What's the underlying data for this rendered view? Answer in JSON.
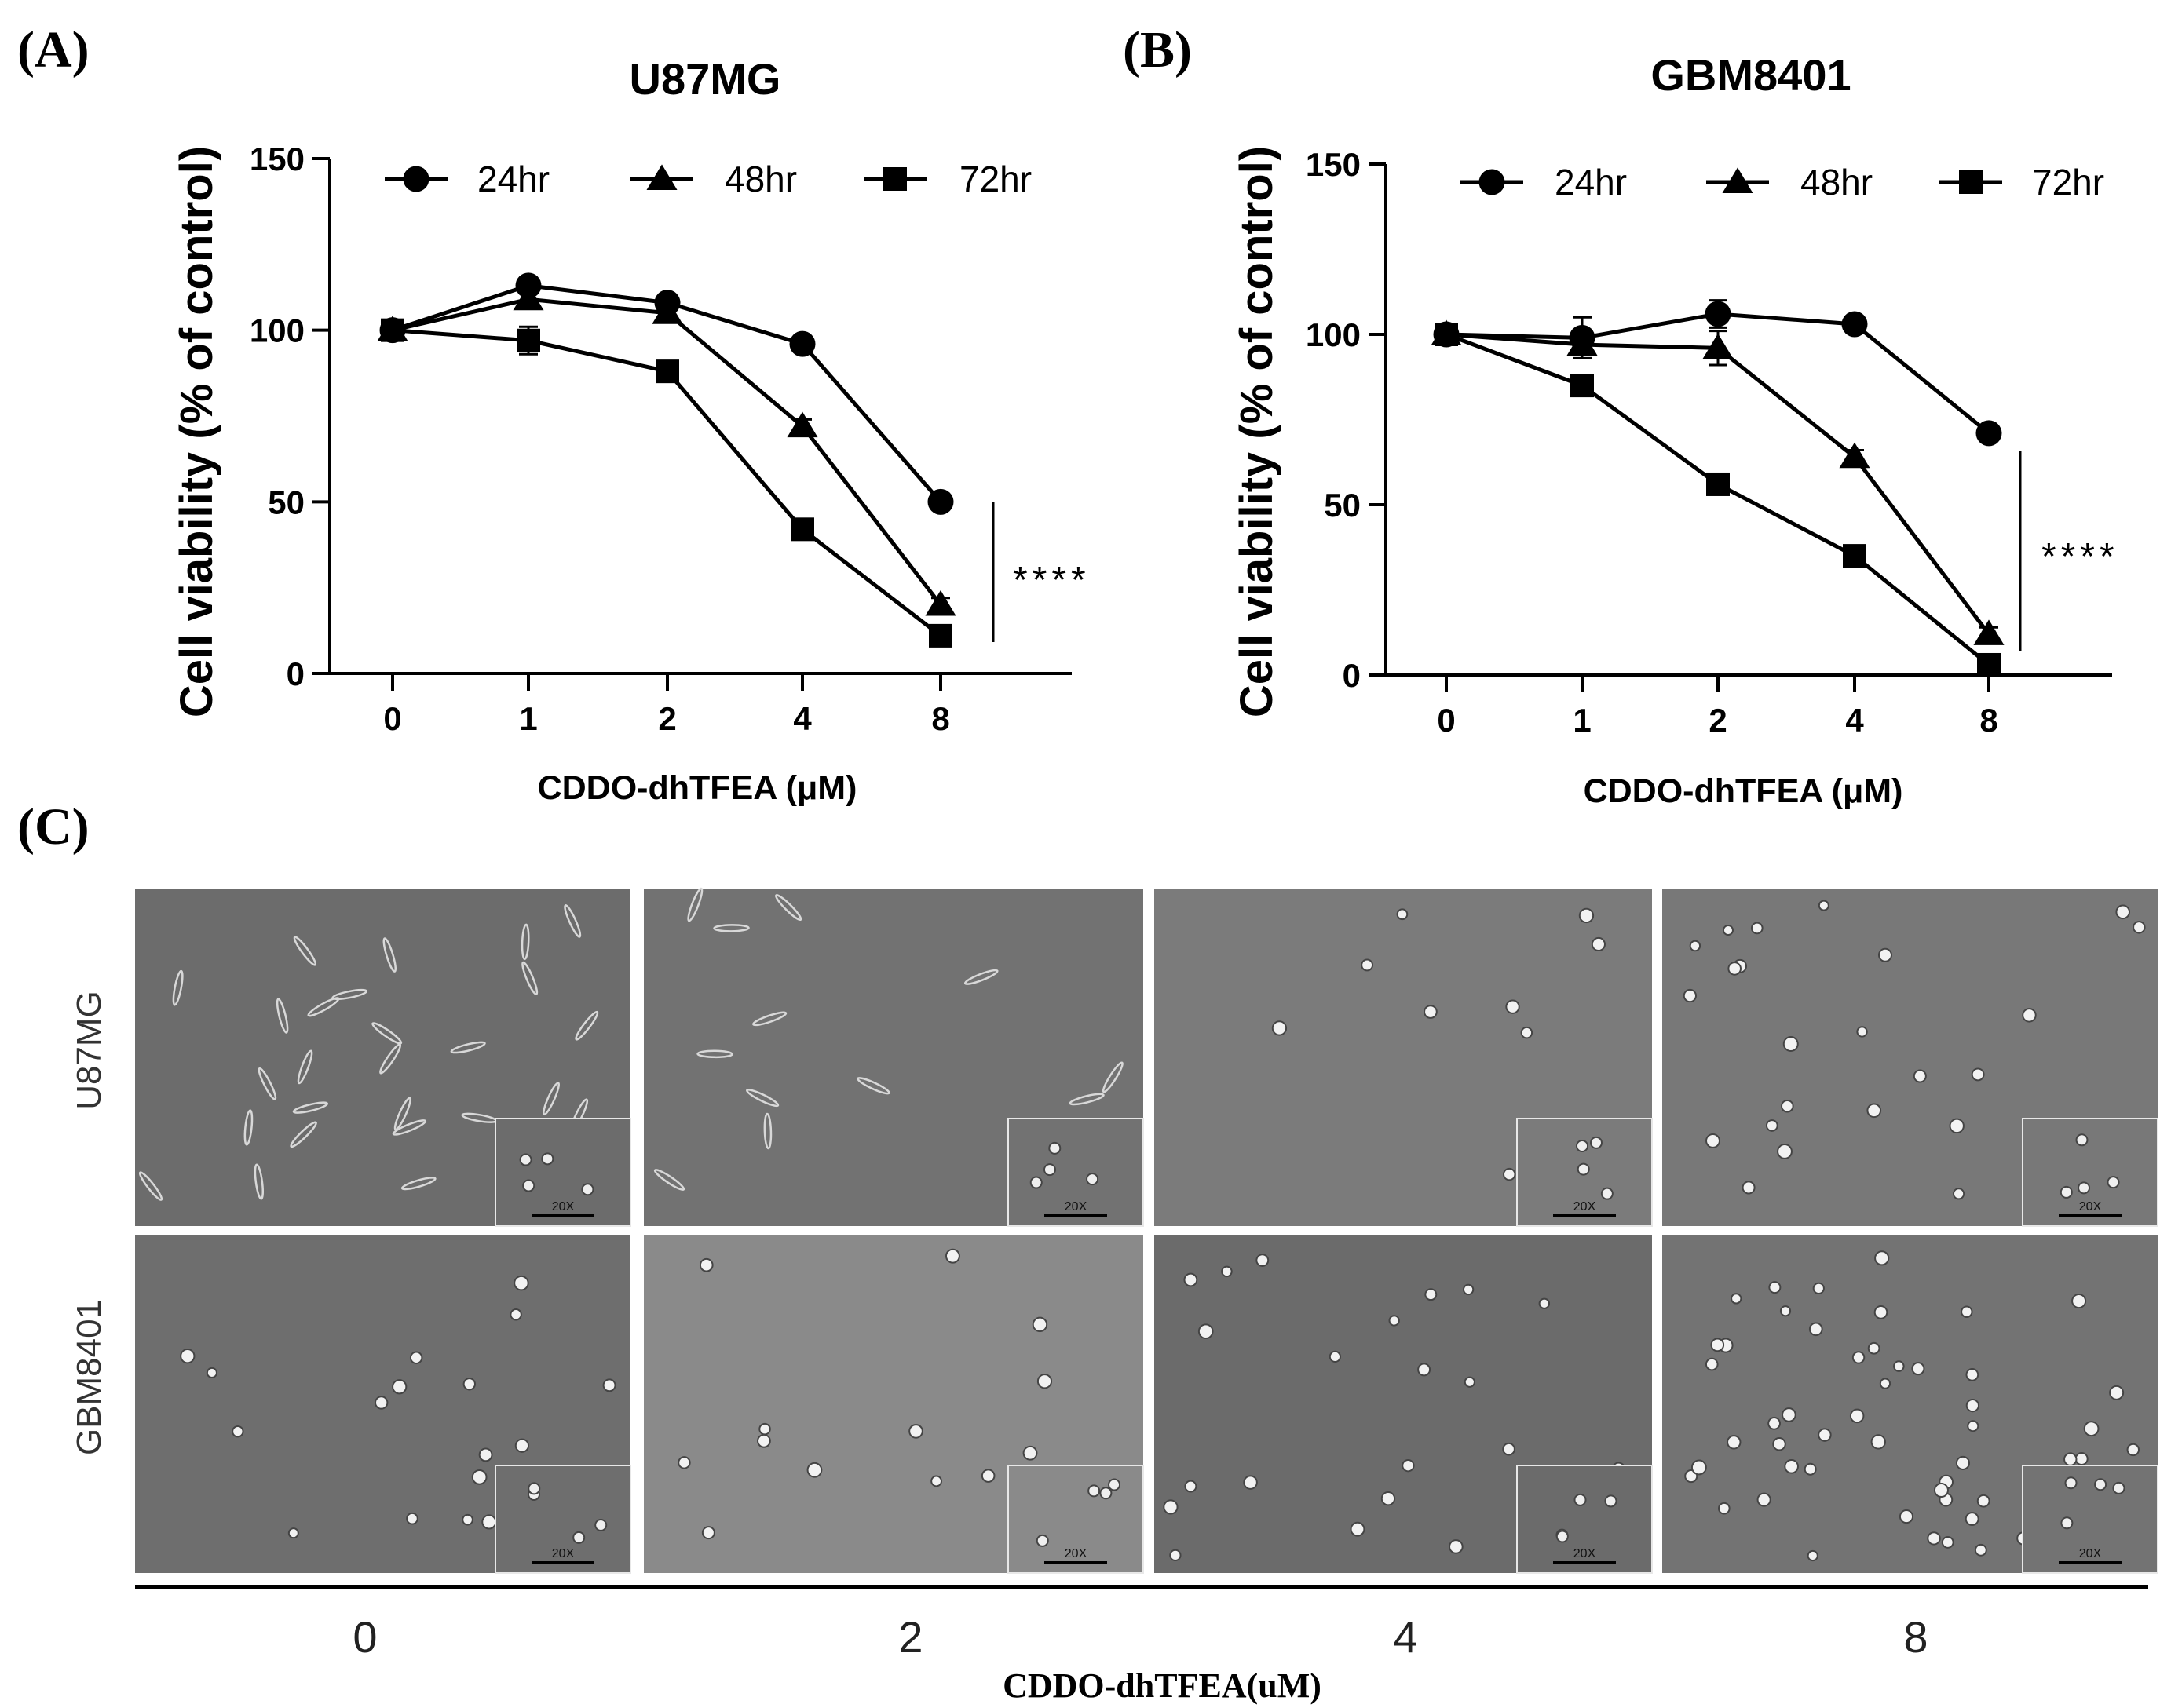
{
  "panel_labels": {
    "a": "(A)",
    "b": "(B)",
    "c": "(C)"
  },
  "chart_data": [
    {
      "type": "line",
      "title": "U87MG",
      "xlabel": "CDDO-dhTFEA (μM)",
      "ylabel": "Cell viability (% of control)",
      "categories": [
        "0",
        "1",
        "2",
        "4",
        "8"
      ],
      "ylim": [
        0,
        150
      ],
      "yticks": [
        "0",
        "50",
        "100",
        "150"
      ],
      "legend_position": "top",
      "series": [
        {
          "name": "24hr",
          "marker": "circle",
          "values": [
            100,
            113,
            108,
            96,
            50
          ],
          "errors": [
            1,
            2,
            1.5,
            1.5,
            1.5
          ]
        },
        {
          "name": "48hr",
          "marker": "triangle",
          "values": [
            100,
            109,
            105,
            72,
            20
          ],
          "errors": [
            1,
            2,
            1.5,
            2,
            2
          ]
        },
        {
          "name": "72hr",
          "marker": "square",
          "values": [
            100,
            97,
            88,
            42,
            11
          ],
          "errors": [
            1,
            4,
            1.5,
            1.5,
            1
          ]
        }
      ],
      "significance": "****"
    },
    {
      "type": "line",
      "title": "GBM8401",
      "xlabel": "CDDO-dhTFEA (μM)",
      "ylabel": "Cell viability (% of control)",
      "categories": [
        "0",
        "1",
        "2",
        "4",
        "8"
      ],
      "ylim": [
        0,
        150
      ],
      "yticks": [
        "0",
        "50",
        "100",
        "150"
      ],
      "legend_position": "top",
      "series": [
        {
          "name": "24hr",
          "marker": "circle",
          "values": [
            100,
            99,
            106,
            103,
            71
          ],
          "errors": [
            1,
            6,
            4,
            1.5,
            1.5
          ]
        },
        {
          "name": "48hr",
          "marker": "triangle",
          "values": [
            100,
            97,
            96,
            64,
            12
          ],
          "errors": [
            1,
            3,
            5,
            2,
            2
          ]
        },
        {
          "name": "72hr",
          "marker": "square",
          "values": [
            100,
            85,
            56,
            35,
            3
          ],
          "errors": [
            1,
            1.5,
            1.5,
            1.5,
            1
          ]
        }
      ],
      "significance": "****"
    }
  ],
  "micrographs": {
    "row_labels": [
      "U87MG",
      "GBM8401"
    ],
    "column_labels": [
      "0",
      "2",
      "4",
      "8"
    ],
    "inset_label": "20X",
    "xlabel": "CDDO-dhTFEA(uM)"
  },
  "colors": {
    "ink": "#000000",
    "image_gray": "#6f6f6f",
    "image_gray_light": "#7c7c7c"
  }
}
